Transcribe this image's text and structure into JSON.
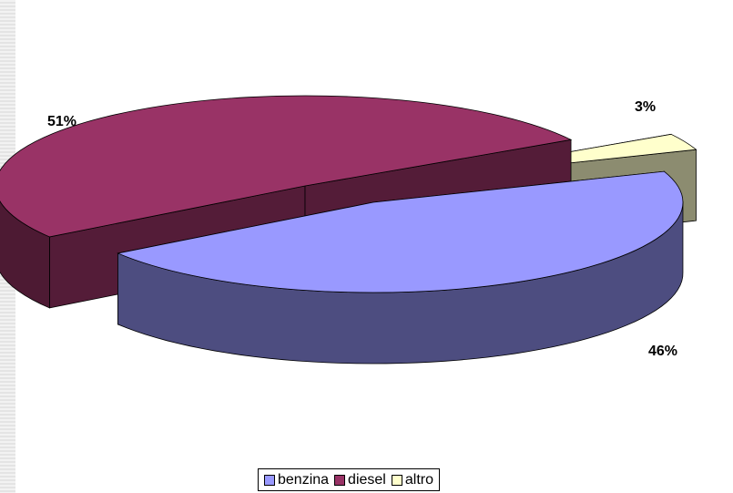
{
  "chart_data": {
    "type": "pie",
    "style": "3d-exploded",
    "categories": [
      "benzina",
      "diesel",
      "altro"
    ],
    "values": [
      46,
      51,
      3
    ],
    "labels": [
      "46%",
      "51%",
      "3%"
    ],
    "colors": {
      "benzina": "#9999ff",
      "diesel": "#993366",
      "altro": "#ffffcc"
    },
    "legend_position": "bottom",
    "title": ""
  }
}
